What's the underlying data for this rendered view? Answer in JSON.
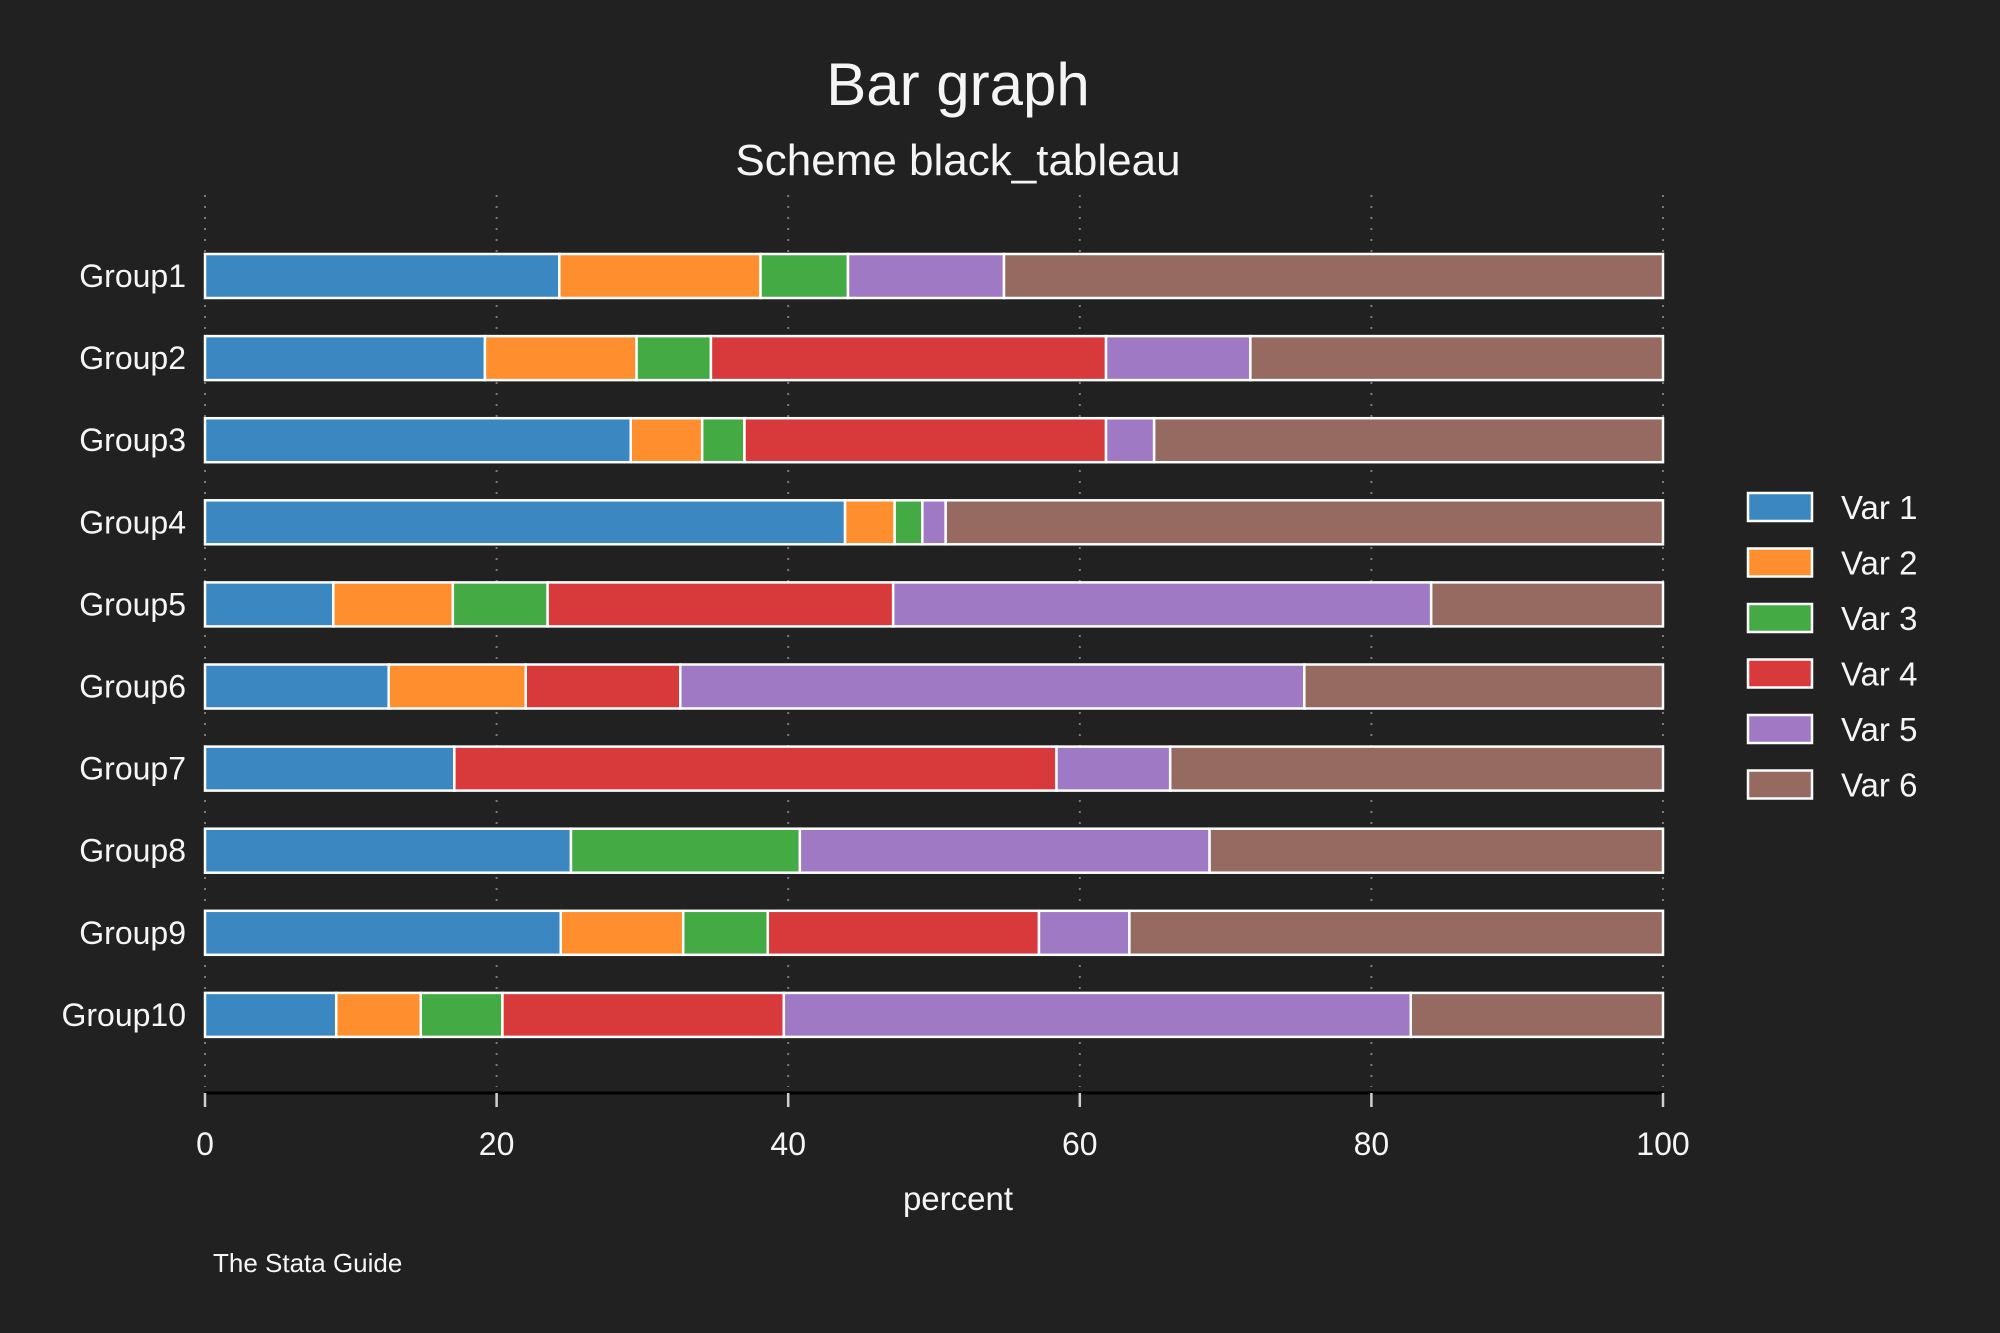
{
  "chart_data": {
    "type": "bar",
    "orientation": "horizontal",
    "stacked": true,
    "title": "Bar graph",
    "subtitle": "Scheme black_tableau",
    "xlabel": "percent",
    "ylabel": "",
    "xlim": [
      0,
      100
    ],
    "xticks": [
      0,
      20,
      40,
      60,
      80,
      100
    ],
    "grid": "vertical dotted",
    "legend_position": "right",
    "note": "The Stata Guide",
    "background": "#212121",
    "categories": [
      "Group1",
      "Group2",
      "Group3",
      "Group4",
      "Group5",
      "Group6",
      "Group7",
      "Group8",
      "Group9",
      "Group10"
    ],
    "series": [
      {
        "name": "Var 1",
        "color": "#3a87c2",
        "values": [
          24.3,
          19.2,
          29.2,
          43.9,
          8.8,
          12.6,
          17.1,
          25.1,
          24.4,
          9.0
        ]
      },
      {
        "name": "Var 2",
        "color": "#ff8f2e",
        "values": [
          13.8,
          10.4,
          4.9,
          3.4,
          8.2,
          9.4,
          0,
          0,
          8.4,
          5.8
        ]
      },
      {
        "name": "Var 3",
        "color": "#43aa44",
        "values": [
          6.0,
          5.1,
          2.9,
          1.9,
          6.5,
          0,
          0,
          15.7,
          5.8,
          5.6
        ]
      },
      {
        "name": "Var 4",
        "color": "#d8393b",
        "values": [
          0,
          27.1,
          24.8,
          0,
          23.7,
          10.6,
          41.3,
          0,
          18.6,
          19.3
        ]
      },
      {
        "name": "Var 5",
        "color": "#9f79c4",
        "values": [
          10.7,
          9.9,
          3.3,
          1.6,
          36.9,
          42.8,
          7.8,
          28.1,
          6.2,
          43.0
        ]
      },
      {
        "name": "Var 6",
        "color": "#966961",
        "values": [
          45.2,
          28.3,
          34.9,
          49.2,
          15.9,
          24.6,
          33.8,
          31.1,
          36.6,
          17.3
        ]
      }
    ]
  }
}
